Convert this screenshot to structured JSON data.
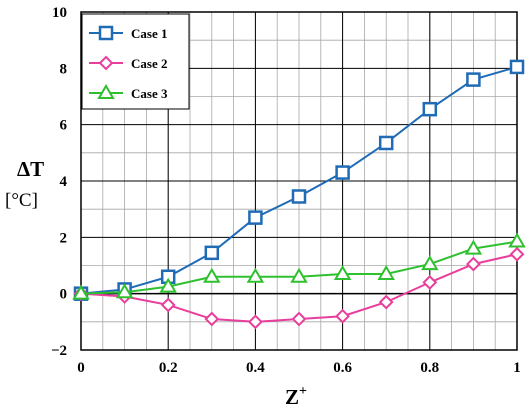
{
  "chart_data": {
    "type": "line",
    "x": [
      0,
      0.1,
      0.2,
      0.3,
      0.4,
      0.5,
      0.6,
      0.7,
      0.8,
      0.9,
      1
    ],
    "series": [
      {
        "name": "Case 1",
        "color": "#1f6bb5",
        "marker": "square",
        "values": [
          0,
          0.15,
          0.6,
          1.45,
          2.7,
          3.45,
          4.3,
          5.35,
          6.55,
          7.6,
          8.05
        ]
      },
      {
        "name": "Case 2",
        "color": "#e83e9c",
        "marker": "diamond",
        "values": [
          0,
          -0.1,
          -0.4,
          -0.9,
          -1.0,
          -0.9,
          -0.8,
          -0.3,
          0.4,
          1.05,
          1.4
        ]
      },
      {
        "name": "Case 3",
        "color": "#2ec02e",
        "marker": "triangle",
        "values": [
          0,
          0.05,
          0.25,
          0.6,
          0.6,
          0.6,
          0.7,
          0.7,
          1.05,
          1.6,
          1.85
        ]
      }
    ],
    "xlim": [
      0,
      1
    ],
    "ylim": [
      -2,
      10
    ],
    "x_ticks": [
      0,
      0.2,
      0.4,
      0.6,
      0.8,
      1
    ],
    "y_ticks": [
      -2,
      0,
      2,
      4,
      6,
      8,
      10
    ],
    "x_tick_labels": [
      "0",
      "0.2",
      "0.4",
      "0.6",
      "0.8",
      "1"
    ],
    "y_tick_labels": [
      "−2",
      "0",
      "2",
      "4",
      "6",
      "8",
      "10"
    ],
    "xlabel_main": "Z",
    "xlabel_sup": "+",
    "ylabel": "ΔT",
    "ylabel_unit": "[°C]",
    "grid": true,
    "legend_position": "top-left"
  }
}
